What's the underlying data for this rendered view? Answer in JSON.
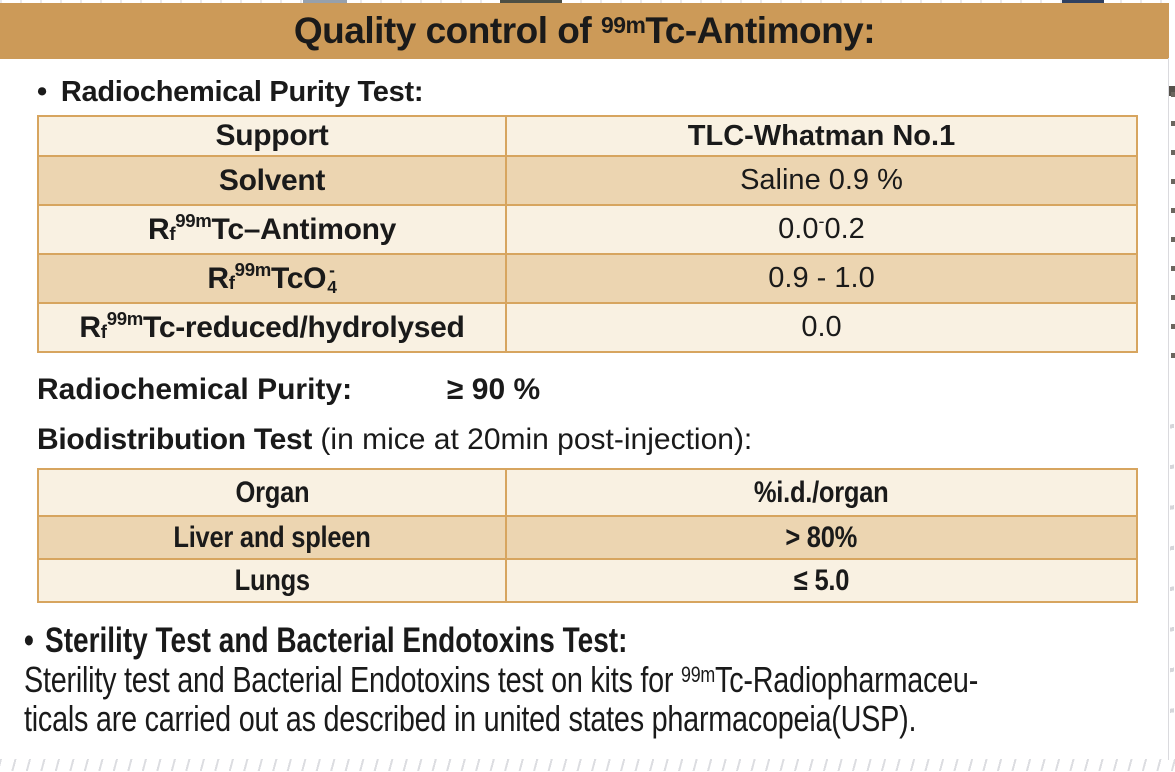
{
  "colors": {
    "band": "#cc9a58",
    "row_shade": "#ecd5b1",
    "row_light": "#f9f1e2",
    "table_border": "#d7a55f",
    "text": "#1a1a1a"
  },
  "title": {
    "parts": [
      {
        "t": "Quality control of "
      },
      {
        "t": "99m",
        "s": "sup"
      },
      {
        "t": "Tc-Antimony:"
      }
    ]
  },
  "purity_section": {
    "bullet": "•",
    "heading": "Radiochemical Purity Test:"
  },
  "table1": {
    "rows": [
      {
        "label": [
          {
            "t": "Support"
          }
        ],
        "value": [
          {
            "t": "TLC-Whatman No.1"
          }
        ]
      },
      {
        "label": [
          {
            "t": "Solvent"
          }
        ],
        "value": [
          {
            "t": "Saline 0.9 %"
          }
        ]
      },
      {
        "label": [
          {
            "t": "R"
          },
          {
            "t": "f",
            "s": "sub"
          },
          {
            "t": " "
          },
          {
            "t": "99m",
            "s": "sup"
          },
          {
            "t": "Tc–Antimony"
          }
        ],
        "value": [
          {
            "t": "0.0 "
          },
          {
            "t": "-",
            "s": "sup"
          },
          {
            "t": " 0.2"
          }
        ]
      },
      {
        "label": [
          {
            "t": "R"
          },
          {
            "t": "f",
            "s": "sub"
          },
          {
            "t": " "
          },
          {
            "t": "99m",
            "s": "sup"
          },
          {
            "t": "TcO"
          },
          {
            "s": "stack",
            "top": "-",
            "bot": "4"
          }
        ],
        "value": [
          {
            "t": "0.9 - 1.0"
          }
        ]
      },
      {
        "label": [
          {
            "t": "R"
          },
          {
            "t": "f",
            "s": "sub"
          },
          {
            "t": " "
          },
          {
            "t": "99m",
            "s": "sup"
          },
          {
            "t": "Tc-reduced/hydrolysed"
          }
        ],
        "value": [
          {
            "t": "0.0"
          }
        ]
      }
    ]
  },
  "purity_result": {
    "label": "Radiochemical Purity:",
    "value": "≥ 90 %"
  },
  "biodistribution": {
    "heading_bold": "Biodistribution Test",
    "heading_normal": " (in mice at 20min post-injection):"
  },
  "table2": {
    "rows": [
      {
        "organ": "Organ",
        "value": "%i.d./organ"
      },
      {
        "organ": "Liver and spleen",
        "value": "> 80%"
      },
      {
        "organ": "Lungs",
        "value": "≤ 5.0"
      }
    ]
  },
  "sterility": {
    "bullet": "•",
    "heading": "Sterility Test and Bacterial Endotoxins Test:",
    "line1": [
      {
        "t": "Sterility test and Bacterial Endotoxins test on kits for "
      },
      {
        "t": "99m",
        "s": "sup"
      },
      {
        "t": "Tc-Radiopharmaceu-"
      }
    ],
    "line2": "ticals are carried out as described in united states pharmacopeia(USP)."
  }
}
